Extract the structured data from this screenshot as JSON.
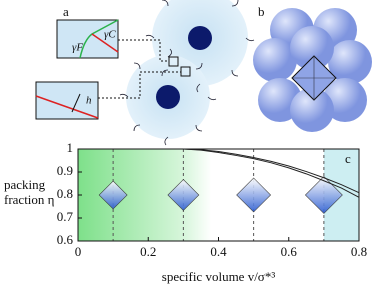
{
  "panel_labels": {
    "a": "a",
    "b": "b"
  },
  "schematic_labels": {
    "gamma_f": "γF",
    "gamma_c": "γC",
    "h": "h"
  },
  "chart_data": {
    "type": "line",
    "label": "c",
    "xlabel": "specific volume v/σ*³",
    "ylabel": [
      "packing",
      "fraction η"
    ],
    "x": [
      0.3,
      0.35,
      0.4,
      0.45,
      0.5,
      0.55,
      0.6,
      0.65,
      0.7,
      0.75,
      0.8
    ],
    "series": [
      {
        "color": "#222222",
        "values": [
          1.0,
          0.995,
          0.985,
          0.972,
          0.958,
          0.94,
          0.918,
          0.892,
          0.862,
          0.83,
          0.79
        ]
      },
      {
        "color": "#222222",
        "values": [
          1.0,
          0.997,
          0.989,
          0.977,
          0.963,
          0.946,
          0.926,
          0.902,
          0.875,
          0.845,
          0.81
        ]
      }
    ],
    "regions": [
      {
        "xlim": [
          0,
          0.38
        ],
        "color": "#7ee08a"
      },
      {
        "xlim": [
          0.7,
          0.8
        ],
        "color": "#cdeef2"
      }
    ],
    "vlines": [
      0.1,
      0.3,
      0.5,
      0.7
    ],
    "xlim": [
      0,
      0.8
    ],
    "ylim": [
      0.6,
      1
    ],
    "xticks": [
      0,
      0.2,
      0.4,
      0.6,
      0.8
    ],
    "yticks": [
      0.6,
      0.7,
      0.8,
      0.9,
      1
    ]
  }
}
